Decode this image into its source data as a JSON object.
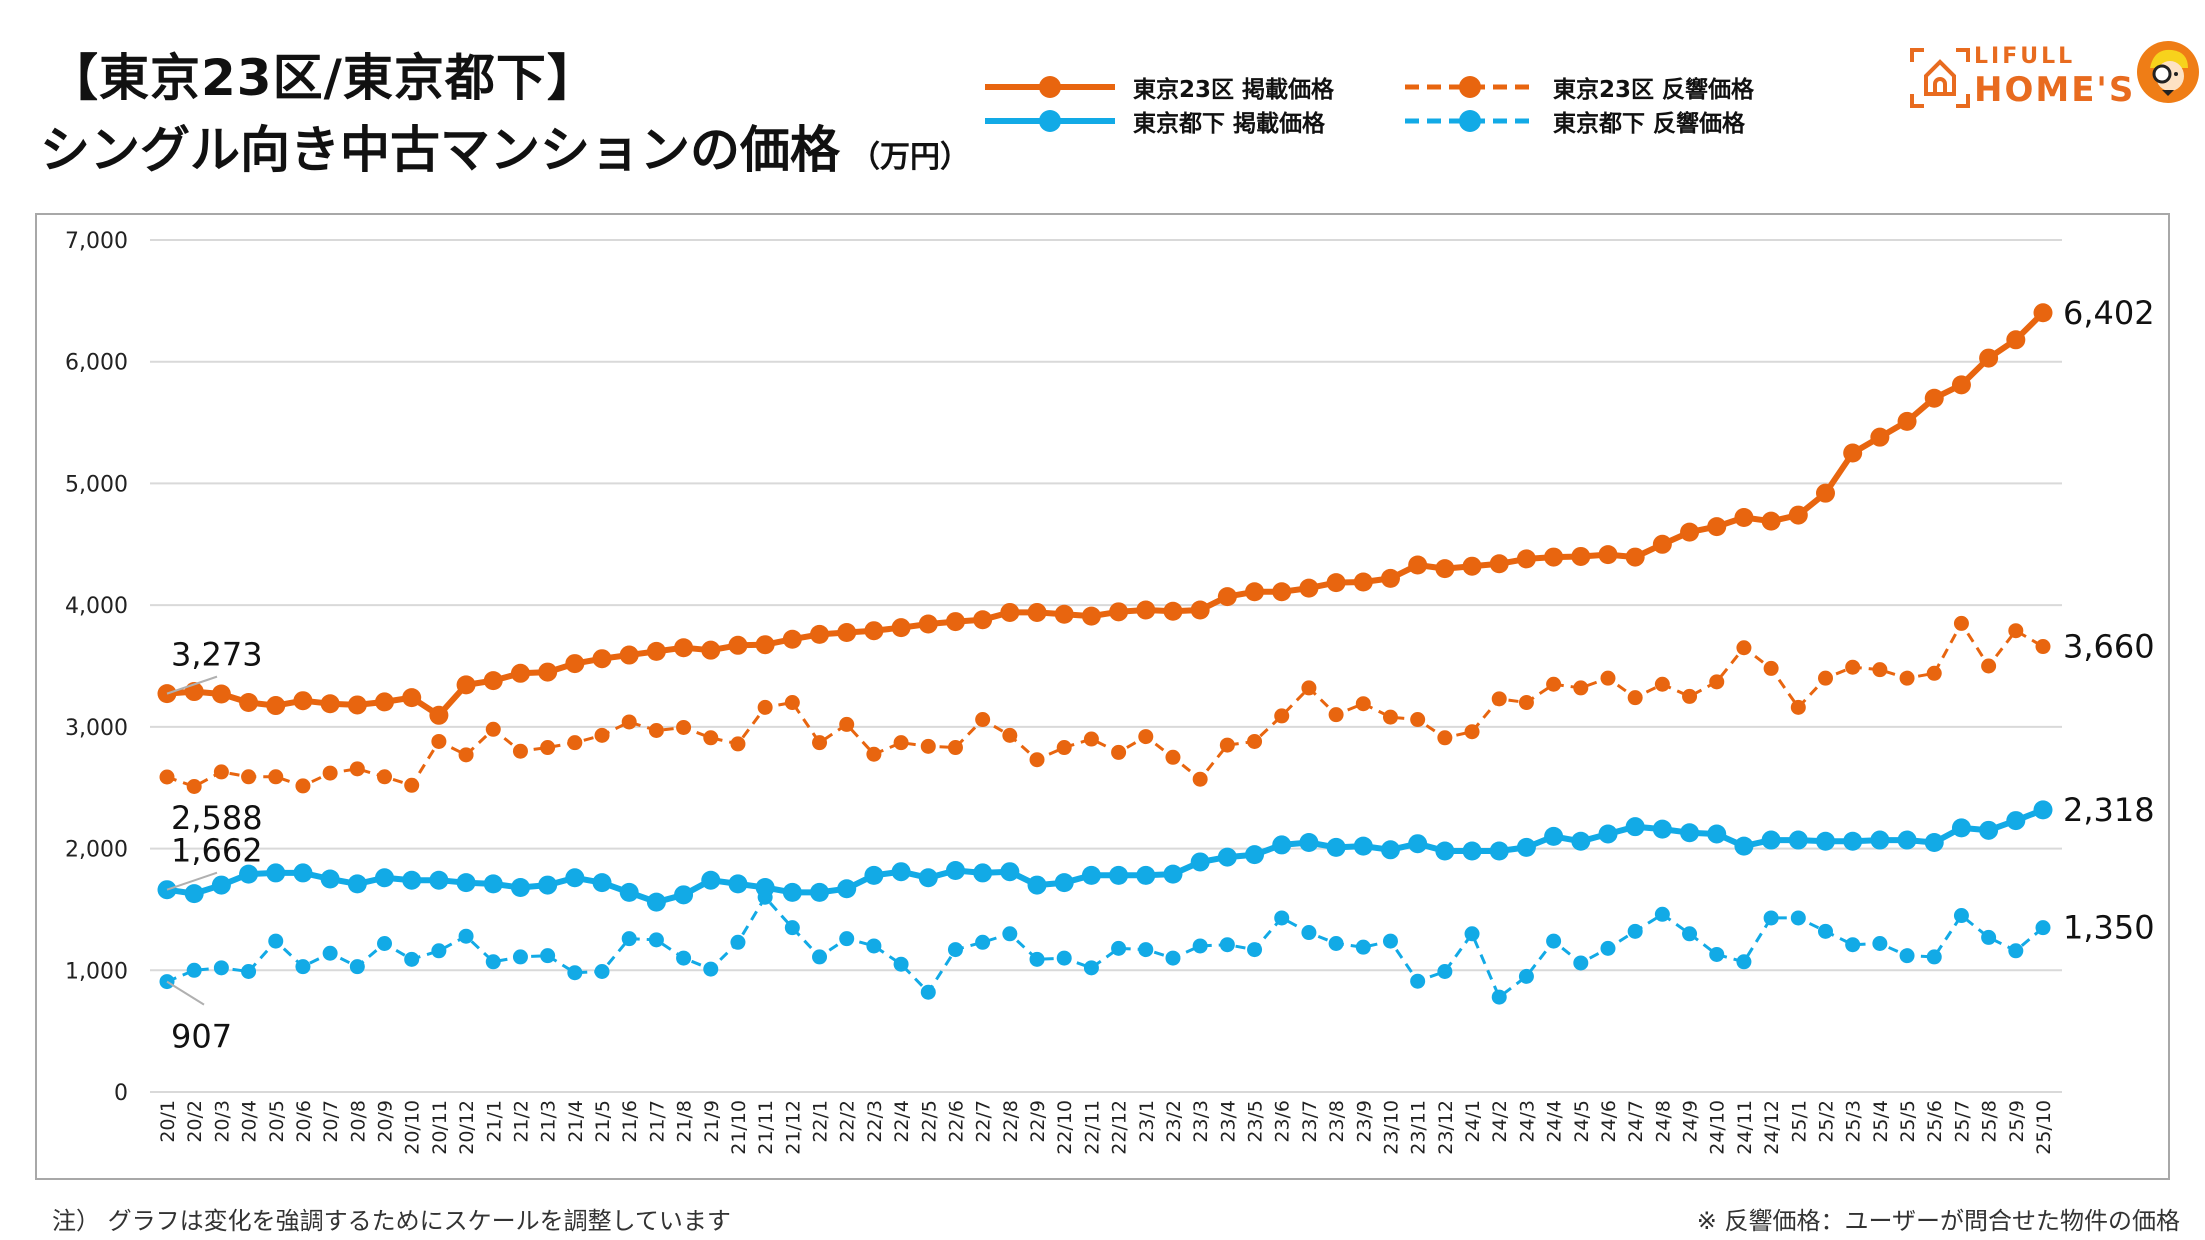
{
  "header": {
    "title_line1": "【東京23区/東京都下】",
    "title_line2": "シングル向き中古マンションの価格",
    "unit": "（万円）"
  },
  "legend": [
    {
      "label": "東京23区 掲載価格",
      "color": "#e8650f",
      "style": "solid"
    },
    {
      "label": "東京23区 反響価格",
      "color": "#e8650f",
      "style": "dashed"
    },
    {
      "label": "東京都下 掲載価格",
      "color": "#12aae6",
      "style": "solid"
    },
    {
      "label": "東京都下 反響価格",
      "color": "#12aae6",
      "style": "dashed"
    }
  ],
  "logo": {
    "line1": "LIFULL",
    "line2": "HOME'S",
    "color": "#e86b1f"
  },
  "notes": {
    "left": "注）  グラフは変化を強調するためにスケールを調整しています",
    "right": "※ 反響価格：ユーザーが問合せた物件の価格"
  },
  "chart_data": {
    "type": "line",
    "title": "【東京23区/東京都下】シングル向き中古マンションの価格（万円）",
    "xlabel": "",
    "ylabel": "万円",
    "ylim": [
      0,
      7000
    ],
    "yticks": [
      0,
      1000,
      2000,
      3000,
      4000,
      5000,
      6000,
      7000
    ],
    "ytick_labels": [
      "0",
      "1,000",
      "2,000",
      "3,000",
      "4,000",
      "5,000",
      "6,000",
      "7,000"
    ],
    "grid": true,
    "legend_position": "top-right",
    "x": [
      "20/1",
      "20/2",
      "20/3",
      "20/4",
      "20/5",
      "20/6",
      "20/7",
      "20/8",
      "20/9",
      "20/10",
      "20/11",
      "20/12",
      "21/1",
      "21/2",
      "21/3",
      "21/4",
      "21/5",
      "21/6",
      "21/7",
      "21/8",
      "21/9",
      "21/10",
      "21/11",
      "21/12",
      "22/1",
      "22/2",
      "22/3",
      "22/4",
      "22/5",
      "22/6",
      "22/7",
      "22/8",
      "22/9",
      "22/10",
      "22/11",
      "22/12",
      "23/1",
      "23/2",
      "23/3",
      "23/4",
      "23/5",
      "23/6",
      "23/7",
      "23/8",
      "23/9",
      "23/10",
      "23/11",
      "23/12",
      "24/1",
      "24/2",
      "24/3",
      "24/4",
      "24/5",
      "24/6",
      "24/7",
      "24/8",
      "24/9",
      "24/10",
      "24/11",
      "24/12",
      "25/1",
      "25/2",
      "25/3",
      "25/4",
      "25/5",
      "25/6",
      "25/7",
      "25/8",
      "25/9",
      "25/10"
    ],
    "series": [
      {
        "name": "東京23区 掲載価格",
        "color": "#e8650f",
        "style": "solid",
        "values": [
          3273,
          3290,
          3270,
          3200,
          3175,
          3215,
          3190,
          3180,
          3205,
          3240,
          3095,
          3345,
          3380,
          3440,
          3450,
          3520,
          3560,
          3590,
          3620,
          3650,
          3630,
          3670,
          3675,
          3720,
          3760,
          3775,
          3790,
          3815,
          3845,
          3865,
          3880,
          3940,
          3940,
          3925,
          3910,
          3945,
          3960,
          3950,
          3960,
          4070,
          4110,
          4110,
          4140,
          4185,
          4190,
          4220,
          4330,
          4300,
          4320,
          4340,
          4380,
          4395,
          4400,
          4415,
          4395,
          4500,
          4600,
          4645,
          4720,
          4690,
          4740,
          4920,
          5250,
          5380,
          5510,
          5700,
          5810,
          6030,
          6180,
          6402
        ],
        "labels": [
          {
            "index": 0,
            "text": "3,273",
            "pos": "above"
          },
          {
            "index": 69,
            "text": "6,402",
            "pos": "right"
          }
        ]
      },
      {
        "name": "東京23区 反響価格",
        "color": "#e8650f",
        "style": "dashed",
        "values": [
          2588,
          2510,
          2630,
          2590,
          2590,
          2515,
          2620,
          2655,
          2590,
          2520,
          2880,
          2770,
          2980,
          2800,
          2830,
          2870,
          2930,
          3040,
          2970,
          2995,
          2910,
          2860,
          3160,
          3200,
          2870,
          3020,
          2775,
          2870,
          2840,
          2830,
          3060,
          2930,
          2730,
          2830,
          2900,
          2790,
          2920,
          2750,
          2570,
          2850,
          2880,
          3090,
          3320,
          3100,
          3190,
          3080,
          3060,
          2910,
          2960,
          3230,
          3200,
          3350,
          3320,
          3400,
          3240,
          3350,
          3250,
          3370,
          3650,
          3480,
          3160,
          3400,
          3490,
          3470,
          3400,
          3440,
          3850,
          3500,
          3790,
          3660
        ],
        "labels": [
          {
            "index": 0,
            "text": "2,588",
            "pos": "below"
          },
          {
            "index": 69,
            "text": "3,660",
            "pos": "right"
          }
        ]
      },
      {
        "name": "東京都下 掲載価格",
        "color": "#12aae6",
        "style": "solid",
        "values": [
          1662,
          1630,
          1700,
          1790,
          1800,
          1800,
          1750,
          1710,
          1760,
          1740,
          1740,
          1720,
          1710,
          1680,
          1700,
          1760,
          1720,
          1640,
          1560,
          1620,
          1740,
          1710,
          1680,
          1640,
          1640,
          1670,
          1780,
          1810,
          1760,
          1820,
          1800,
          1810,
          1700,
          1720,
          1780,
          1780,
          1780,
          1790,
          1890,
          1930,
          1950,
          2030,
          2050,
          2010,
          2020,
          1990,
          2040,
          1980,
          1980,
          1980,
          2010,
          2100,
          2060,
          2120,
          2180,
          2160,
          2130,
          2120,
          2020,
          2070,
          2070,
          2060,
          2060,
          2070,
          2070,
          2050,
          2170,
          2150,
          2230,
          2318
        ],
        "labels": [
          {
            "index": 0,
            "text": "1,662",
            "pos": "above"
          },
          {
            "index": 69,
            "text": "2,318",
            "pos": "right"
          }
        ]
      },
      {
        "name": "東京都下 反響価格",
        "color": "#12aae6",
        "style": "dashed",
        "values": [
          907,
          1000,
          1020,
          990,
          1240,
          1030,
          1140,
          1030,
          1220,
          1090,
          1160,
          1280,
          1070,
          1110,
          1120,
          980,
          990,
          1260,
          1250,
          1100,
          1010,
          1230,
          1600,
          1350,
          1110,
          1260,
          1200,
          1050,
          820,
          1170,
          1230,
          1300,
          1090,
          1100,
          1020,
          1180,
          1170,
          1100,
          1200,
          1210,
          1170,
          1430,
          1310,
          1220,
          1190,
          1240,
          910,
          990,
          1300,
          780,
          950,
          1240,
          1060,
          1180,
          1320,
          1460,
          1300,
          1130,
          1070,
          1430,
          1430,
          1320,
          1210,
          1220,
          1120,
          1110,
          1450,
          1270,
          1160,
          1350
        ],
        "labels": [
          {
            "index": 0,
            "text": "907",
            "pos": "below"
          },
          {
            "index": 69,
            "text": "1,350",
            "pos": "right"
          }
        ]
      }
    ]
  }
}
